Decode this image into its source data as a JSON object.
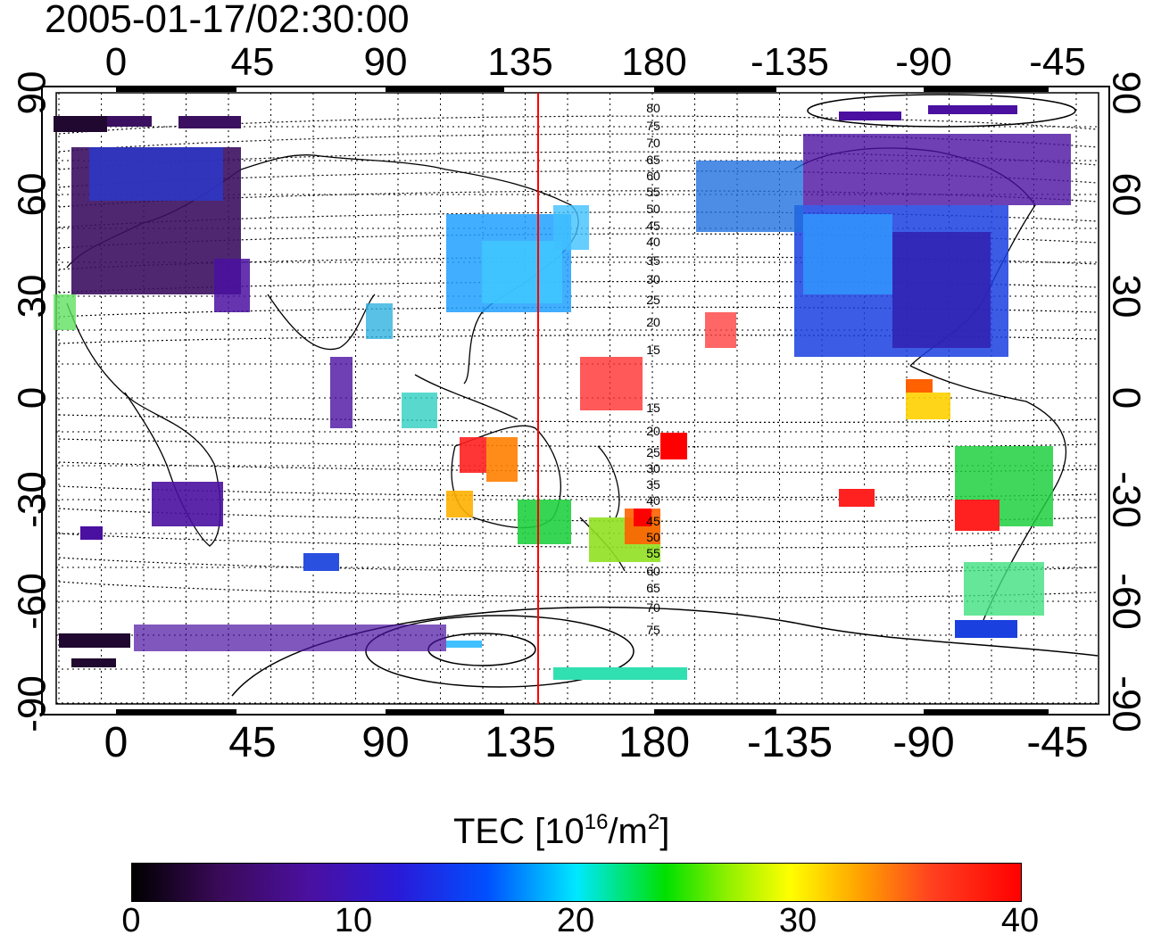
{
  "timestamp": "2005-01-17/02:30:00",
  "map": {
    "lon_ticks": [
      "0",
      "45",
      "90",
      "135",
      "180",
      "-135",
      "-90",
      "-45"
    ],
    "lat_ticks": [
      "90",
      "60",
      "30",
      "0",
      "-30",
      "-60",
      "-90"
    ],
    "contour_labels": [
      "80",
      "75",
      "70",
      "65",
      "60",
      "55",
      "50",
      "45",
      "40",
      "35",
      "30",
      "25",
      "20",
      "15",
      "15",
      "20",
      "25",
      "30",
      "35",
      "40",
      "45",
      "50",
      "55",
      "60",
      "65",
      "70",
      "75"
    ],
    "vertical_marker_color": "#ff0000"
  },
  "colorbar": {
    "title_main": "TEC  [10",
    "title_exp1": "16",
    "title_mid": "/m",
    "title_exp2": "2",
    "title_end": "]",
    "ticks": [
      "0",
      "10",
      "20",
      "30",
      "40"
    ],
    "colors": [
      "#000000",
      "#3b0a5a",
      "#4a10a0",
      "#2a1ad8",
      "#0050ff",
      "#00e8ff",
      "#00e000",
      "#90f000",
      "#ffff00",
      "#ffa000",
      "#ff4020",
      "#ff0000"
    ]
  }
}
